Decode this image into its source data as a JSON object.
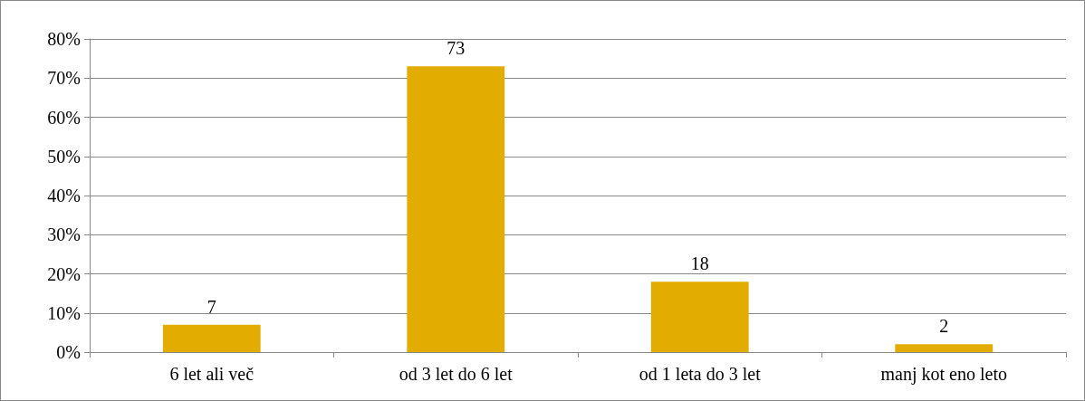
{
  "chart_data": {
    "type": "bar",
    "categories": [
      "6 let ali več",
      "od 3 let do 6 let",
      "od 1 leta do 3 let",
      "manj kot eno leto"
    ],
    "values": [
      7,
      73,
      18,
      2
    ],
    "color": "#e3ac00",
    "ylim": [
      0,
      80
    ],
    "yticks": [
      {
        "value": 0,
        "label": "0%"
      },
      {
        "value": 10,
        "label": "10%"
      },
      {
        "value": 20,
        "label": "20%"
      },
      {
        "value": 30,
        "label": "30%"
      },
      {
        "value": 40,
        "label": "40%"
      },
      {
        "value": 50,
        "label": "50%"
      },
      {
        "value": 60,
        "label": "60%"
      },
      {
        "value": 70,
        "label": "70%"
      },
      {
        "value": 80,
        "label": "80%"
      }
    ],
    "data_labels": true,
    "grid": "y"
  }
}
